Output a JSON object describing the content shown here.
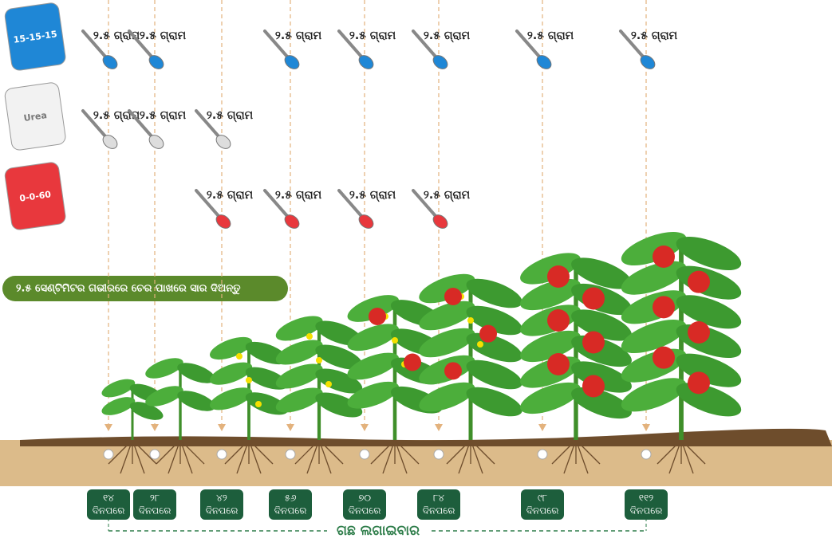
{
  "bags": [
    {
      "name": "15-15-15",
      "color": "#1f87d6",
      "doses": [
        "୨.୫ ଗ୍ରାମ",
        "୨.୫ ଗ୍ରାମ",
        null,
        "୨.୫ ଗ୍ରାମ",
        "୨.୫ ଗ୍ରାମ",
        "୨.୫ ଗ୍ରାମ",
        "୨.୫ ଗ୍ରାମ",
        "୨.୫ ଗ୍ରାମ"
      ]
    },
    {
      "name": "Urea",
      "color": "#f2f2f2",
      "doses": [
        "୨.୫ ଗ୍ରାମ",
        "୨.୫ ଗ୍ରାମ",
        "୨.୫ ଗ୍ରାମ",
        null,
        null,
        null,
        null,
        null
      ]
    },
    {
      "name": "0-0-60",
      "color": "#e8383d",
      "doses": [
        null,
        null,
        "୨.୫ ଗ୍ରାମ",
        "୨.୫ ଗ୍ରାମ",
        "୨.୫ ଗ୍ରାମ",
        "୨.୫ ଗ୍ରାମ",
        null,
        null
      ]
    }
  ],
  "banner": "୨.୫ ସେଣ୍ଟିମିଟର ଗଭୀରରେ ଚେର ପାଖରେ ସାର ଦିଅନ୍ତୁ",
  "days": [
    {
      "number": "୧୪",
      "unit": "ଦିନପରେ"
    },
    {
      "number": "୨୮",
      "unit": "ଦିନପରେ"
    },
    {
      "number": "୪୨",
      "unit": "ଦିନପରେ"
    },
    {
      "number": "୫୬",
      "unit": "ଦିନପରେ"
    },
    {
      "number": "୭୦",
      "unit": "ଦିନପରେ"
    },
    {
      "number": "୮୪",
      "unit": "ଦିନପରେ"
    },
    {
      "number": "୯୮",
      "unit": "ଦିନପରେ"
    },
    {
      "number": "୧୧୨",
      "unit": "ଦିନପରେ"
    }
  ],
  "footer": "ଗଛ ଲଗାଇବାର"
}
